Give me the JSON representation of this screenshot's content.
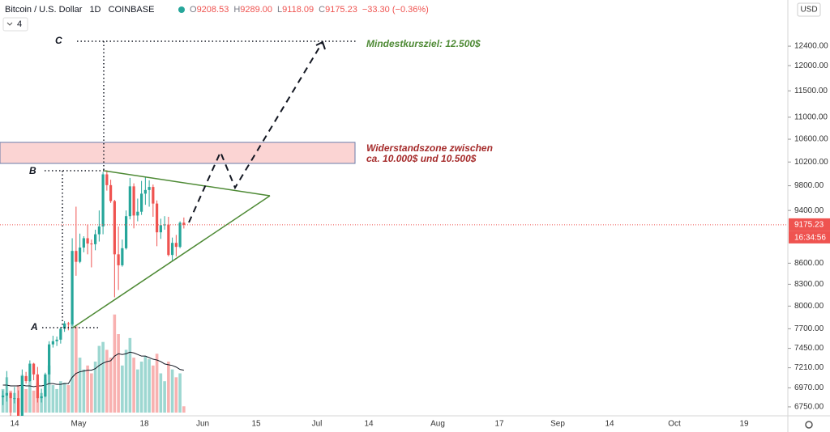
{
  "header": {
    "symbol": "Bitcoin / U.S. Dollar",
    "interval": "1D",
    "exchange": "COINBASE",
    "ohlc_keys": [
      "O",
      "H",
      "L",
      "C"
    ],
    "ohlc_labels": [
      "9208.53",
      "9289.00",
      "9118.09",
      "9175.23"
    ],
    "change": "−33.30 (−0.36%)",
    "pane_count": "4"
  },
  "ui": {
    "currency": "USD",
    "countdown": "16:34:56"
  },
  "annotations": {
    "a": "A",
    "b": "B",
    "c": "C",
    "target": "Mindestkursziel: 12.500$",
    "zone_line1": "Widerstandszone zwischen",
    "zone_line2": "ca. 10.000$ und 10.500$"
  },
  "chart_data": {
    "type": "candlestick",
    "log_scale": true,
    "up_color": "#26a69a",
    "down_color": "#ef5350",
    "x_labels": [
      "14",
      "May",
      "18",
      "Jun",
      "15",
      "Jul",
      "14",
      "Aug",
      "17",
      "Sep",
      "14",
      "Oct",
      "19"
    ],
    "open": [
      6860,
      6880,
      6910,
      6850,
      6850,
      6630,
      7110,
      7050,
      7260,
      7130,
      6850,
      6870,
      7130,
      7500,
      7540,
      7560,
      7700,
      7770,
      7760,
      8780,
      8620,
      8830,
      8970,
      8890,
      8880,
      9030,
      9150,
      9990,
      9810,
      9550,
      8730,
      8570,
      8820,
      9310,
      9790,
      9320,
      9380,
      9670,
      9730,
      9780,
      9510,
      9060,
      9170,
      9180,
      8720,
      8900,
      8840,
      9208.53
    ],
    "high": [
      6940,
      7170,
      6920,
      6980,
      6940,
      7190,
      7160,
      7300,
      7270,
      7220,
      6960,
      7150,
      7540,
      7610,
      7600,
      7720,
      7800,
      7790,
      8970,
      9460,
      9040,
      9000,
      9180,
      8950,
      9100,
      9400,
      10030,
      10060,
      9900,
      9570,
      9150,
      8950,
      9400,
      9930,
      9840,
      9590,
      9880,
      9950,
      9890,
      9820,
      9560,
      9270,
      9310,
      9300,
      8980,
      9020,
      9230,
      9289
    ],
    "low": [
      6770,
      6810,
      6560,
      6790,
      6620,
      6540,
      7020,
      7040,
      7060,
      6800,
      6800,
      6860,
      7030,
      7460,
      7480,
      7510,
      7660,
      7680,
      7740,
      8420,
      8600,
      8760,
      8730,
      8540,
      8790,
      8920,
      9030,
      9720,
      9520,
      8120,
      8220,
      8550,
      8800,
      9260,
      9120,
      9230,
      9330,
      9490,
      9460,
      9300,
      8850,
      8960,
      9100,
      8700,
      8640,
      8700,
      8820,
      9118.09
    ],
    "close": [
      6880,
      6910,
      6850,
      6850,
      6630,
      7110,
      7050,
      7260,
      7130,
      6850,
      6870,
      7130,
      7500,
      7540,
      7560,
      7700,
      7770,
      7760,
      8780,
      8620,
      8830,
      8970,
      8890,
      8880,
      9030,
      9150,
      9990,
      9810,
      9550,
      8730,
      8570,
      8820,
      9310,
      9790,
      9320,
      9380,
      9670,
      9730,
      9780,
      9510,
      9060,
      9170,
      9180,
      8720,
      8900,
      8840,
      9208,
      9175.23
    ],
    "volume": [
      30,
      45,
      28,
      25,
      35,
      48,
      30,
      40,
      28,
      38,
      25,
      42,
      60,
      35,
      30,
      40,
      38,
      35,
      115,
      110,
      70,
      55,
      60,
      50,
      65,
      85,
      90,
      80,
      70,
      125,
      100,
      60,
      80,
      95,
      70,
      55,
      65,
      72,
      68,
      60,
      75,
      50,
      40,
      65,
      55,
      45,
      50,
      8
    ],
    "volume_ma": [
      35,
      35,
      34,
      34,
      34,
      35,
      34,
      34,
      33,
      34,
      34,
      35,
      37,
      37,
      36,
      36,
      37,
      37,
      45,
      50,
      52,
      53,
      54,
      54,
      56,
      60,
      63,
      65,
      66,
      72,
      75,
      74,
      75,
      77,
      76,
      74,
      72,
      72,
      70,
      68,
      67,
      65,
      62,
      61,
      60,
      58,
      55,
      54
    ],
    "ylim": [
      6667,
      13404
    ],
    "yticks": [
      {
        "value": 6750,
        "label": "6750.00"
      },
      {
        "value": 6970,
        "label": "6970.00"
      },
      {
        "value": 7210,
        "label": "7210.00"
      },
      {
        "value": 7450,
        "label": "7450.00"
      },
      {
        "value": 7700,
        "label": "7700.00"
      },
      {
        "value": 8000,
        "label": "8000.00"
      },
      {
        "value": 8300,
        "label": "8300.00"
      },
      {
        "value": 8600,
        "label": "8600.00"
      },
      {
        "value": 9400,
        "label": "9400.00"
      },
      {
        "value": 9800,
        "label": "9800.00"
      },
      {
        "value": 10200,
        "label": "10200.00"
      },
      {
        "value": 10600,
        "label": "10600.00"
      },
      {
        "value": 11000,
        "label": "11000.00"
      },
      {
        "value": 11500,
        "label": "11500.00"
      },
      {
        "value": 12000,
        "label": "12000.00"
      },
      {
        "value": 12400,
        "label": "12400.00"
      }
    ]
  }
}
